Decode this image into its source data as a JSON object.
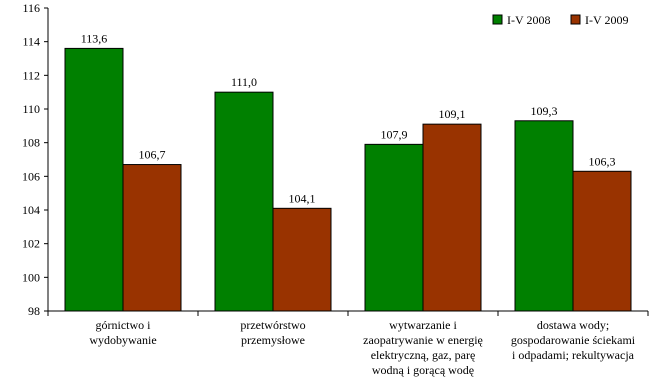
{
  "chart_data": {
    "type": "bar",
    "categories": [
      [
        "górnictwo i",
        "wydobywanie"
      ],
      [
        "przetwórstwo",
        "przemysłowe"
      ],
      [
        "wytwarzanie i",
        "zaopatrywanie w energię",
        "elektryczną, gaz, parę",
        "wodną i gorącą wodę"
      ],
      [
        "dostawa wody;",
        "gospodarowanie ściekami",
        "i odpadami; rekultywacja"
      ]
    ],
    "series": [
      {
        "name": "I-V 2008",
        "color": "#008000",
        "values": [
          113.6,
          111.0,
          107.9,
          109.3
        ],
        "labels": [
          "113,6",
          "111,0",
          "107,9",
          "109,3"
        ]
      },
      {
        "name": "I-V 2009",
        "color": "#993300",
        "values": [
          106.7,
          104.1,
          109.1,
          106.3
        ],
        "labels": [
          "106,7",
          "104,1",
          "109,1",
          "106,3"
        ]
      }
    ],
    "ylim": [
      98,
      116
    ],
    "yticks": [
      98,
      100,
      102,
      104,
      106,
      108,
      110,
      112,
      114,
      116
    ],
    "grid": false,
    "legend": "top-right"
  }
}
